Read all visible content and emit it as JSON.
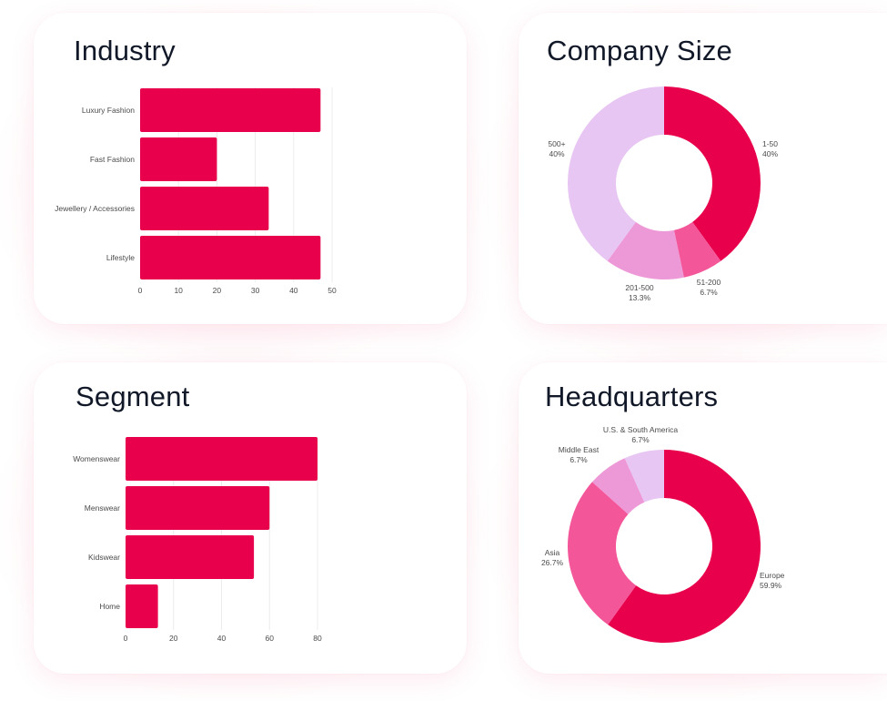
{
  "colors": {
    "bar": "#e8004c",
    "grid": "#ececec",
    "label": "#4b4b4b",
    "title": "#111827"
  },
  "chart_data": [
    {
      "id": "industry",
      "type": "bar",
      "orientation": "horizontal",
      "title": "Industry",
      "categories": [
        "Luxury Fashion",
        "Fast Fashion",
        "Jewellery / Accessories",
        "Lifestyle"
      ],
      "values": [
        47,
        20,
        33.5,
        47
      ],
      "xlim": [
        0,
        50
      ],
      "xticks": [
        0,
        10,
        20,
        30,
        40,
        50
      ],
      "grid": true
    },
    {
      "id": "company_size",
      "type": "pie",
      "donut": true,
      "title": "Company Size",
      "slices": [
        {
          "label": "1-50",
          "pct_label": "40%",
          "value": 40,
          "color": "#e8004c"
        },
        {
          "label": "51-200",
          "pct_label": "6.7%",
          "value": 6.7,
          "color": "#f4569a"
        },
        {
          "label": "201-500",
          "pct_label": "13.3%",
          "value": 13.3,
          "color": "#ee99d7"
        },
        {
          "label": "500+",
          "pct_label": "40%",
          "value": 40,
          "color": "#e8c6f3"
        }
      ]
    },
    {
      "id": "segment",
      "type": "bar",
      "orientation": "horizontal",
      "title": "Segment",
      "categories": [
        "Womenswear",
        "Menswear",
        "Kidswear",
        "Home"
      ],
      "values": [
        80,
        60,
        53.5,
        13.5
      ],
      "xlim": [
        0,
        80
      ],
      "xticks": [
        0,
        20,
        40,
        60,
        80
      ],
      "grid": true
    },
    {
      "id": "headquarters",
      "type": "pie",
      "donut": true,
      "title": "Headquarters",
      "slices": [
        {
          "label": "Europe",
          "pct_label": "59.9%",
          "value": 59.9,
          "color": "#e8004c"
        },
        {
          "label": "Asia",
          "pct_label": "26.7%",
          "value": 26.7,
          "color": "#f4569a"
        },
        {
          "label": "Middle East",
          "pct_label": "6.7%",
          "value": 6.7,
          "color": "#ee99d7"
        },
        {
          "label": "U.S. & South America",
          "pct_label": "6.7%",
          "value": 6.7,
          "color": "#e8c6f3"
        }
      ]
    }
  ]
}
